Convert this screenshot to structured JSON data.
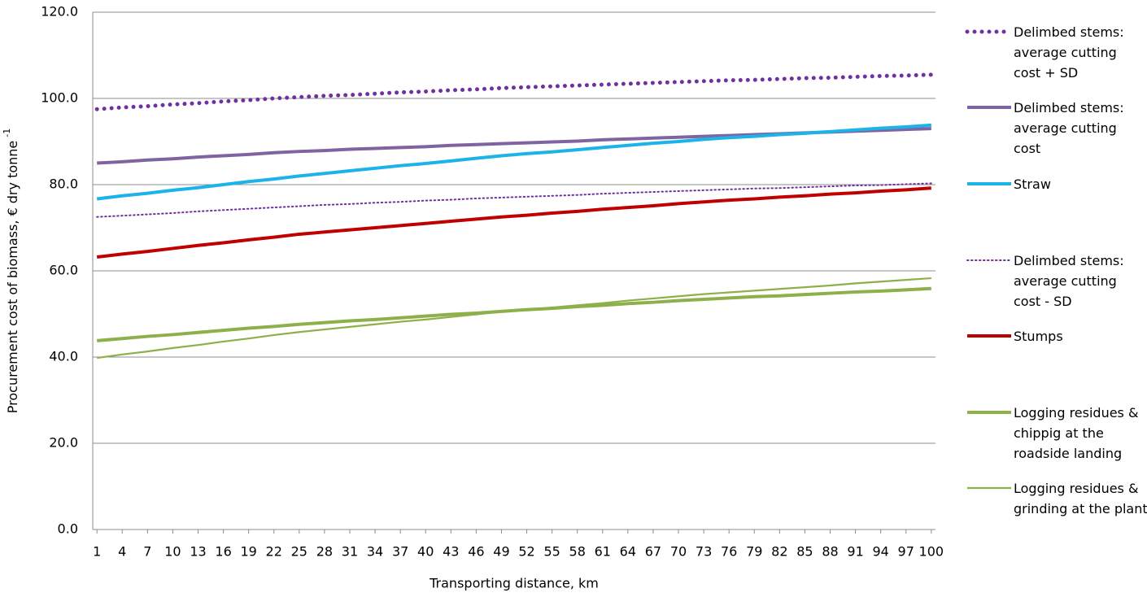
{
  "chart_data": {
    "type": "line",
    "xlabel": "Transporting distance, km",
    "ylabel": "Procurement cost of biomass, € dry tonne",
    "ylabel_superscript": "-1",
    "x": [
      1,
      4,
      7,
      10,
      13,
      16,
      19,
      22,
      25,
      28,
      31,
      34,
      37,
      40,
      43,
      46,
      49,
      52,
      55,
      58,
      61,
      64,
      67,
      70,
      73,
      76,
      79,
      82,
      85,
      88,
      91,
      94,
      97,
      100
    ],
    "xlim": [
      0.5,
      100.5
    ],
    "xticks": [
      1,
      4,
      7,
      10,
      13,
      16,
      19,
      22,
      25,
      28,
      31,
      34,
      37,
      40,
      43,
      46,
      49,
      52,
      55,
      58,
      61,
      64,
      67,
      70,
      73,
      76,
      79,
      82,
      85,
      88,
      91,
      94,
      97,
      100
    ],
    "ylim": [
      0,
      120
    ],
    "yticks": [
      {
        "value": 0,
        "label": "0.0"
      },
      {
        "value": 20,
        "label": "20.0"
      },
      {
        "value": 40,
        "label": "40.0"
      },
      {
        "value": 60,
        "label": "60.0"
      },
      {
        "value": 80,
        "label": "80.0"
      },
      {
        "value": 100,
        "label": "100.0"
      },
      {
        "value": 120,
        "label": "120.0"
      }
    ],
    "grid": true,
    "legend": "right",
    "series": [
      {
        "name": "Delimbed stems: average cutting cost + SD",
        "color": "#7030a0",
        "style": "dotted",
        "weight": "bold",
        "values": [
          97.5,
          97.9,
          98.2,
          98.6,
          98.9,
          99.3,
          99.6,
          100.0,
          100.3,
          100.6,
          100.8,
          101.1,
          101.4,
          101.6,
          101.9,
          102.1,
          102.4,
          102.6,
          102.8,
          103.0,
          103.2,
          103.4,
          103.6,
          103.8,
          104.0,
          104.2,
          104.3,
          104.5,
          104.7,
          104.8,
          105.0,
          105.2,
          105.3,
          105.5
        ]
      },
      {
        "name": "Delimbed stems: average cutting cost",
        "color": "#8064a2",
        "style": "solid",
        "weight": "bold",
        "values": [
          85.0,
          85.3,
          85.7,
          86.0,
          86.4,
          86.7,
          87.0,
          87.4,
          87.7,
          87.9,
          88.2,
          88.4,
          88.6,
          88.8,
          89.1,
          89.3,
          89.5,
          89.7,
          89.9,
          90.1,
          90.4,
          90.6,
          90.8,
          91.0,
          91.2,
          91.4,
          91.6,
          91.8,
          92.0,
          92.2,
          92.4,
          92.6,
          92.8,
          93.0
        ]
      },
      {
        "name": "Straw",
        "color": "#1cb4e8",
        "style": "solid",
        "weight": "bold",
        "values": [
          76.7,
          77.4,
          78.0,
          78.7,
          79.3,
          80.0,
          80.7,
          81.3,
          82.0,
          82.6,
          83.2,
          83.8,
          84.4,
          84.9,
          85.5,
          86.1,
          86.7,
          87.2,
          87.6,
          88.1,
          88.6,
          89.1,
          89.6,
          90.0,
          90.5,
          90.9,
          91.2,
          91.6,
          91.9,
          92.3,
          92.7,
          93.1,
          93.4,
          93.8
        ]
      },
      {
        "name": "Delimbed stems: average cutting cost - SD",
        "color": "#7030a0",
        "style": "dotted",
        "weight": "thin",
        "values": [
          72.5,
          72.8,
          73.1,
          73.4,
          73.8,
          74.1,
          74.4,
          74.7,
          75.0,
          75.3,
          75.5,
          75.8,
          76.0,
          76.3,
          76.5,
          76.8,
          77.0,
          77.2,
          77.4,
          77.6,
          77.9,
          78.1,
          78.3,
          78.5,
          78.7,
          78.9,
          79.1,
          79.2,
          79.4,
          79.6,
          79.8,
          79.9,
          80.1,
          80.3
        ]
      },
      {
        "name": "Stumps",
        "color": "#c00000",
        "style": "solid",
        "weight": "bold",
        "values": [
          63.2,
          63.9,
          64.5,
          65.2,
          65.9,
          66.5,
          67.2,
          67.8,
          68.5,
          69.0,
          69.5,
          70.0,
          70.5,
          71.0,
          71.5,
          72.0,
          72.5,
          72.9,
          73.4,
          73.8,
          74.3,
          74.7,
          75.1,
          75.6,
          76.0,
          76.4,
          76.7,
          77.1,
          77.4,
          77.8,
          78.1,
          78.5,
          78.8,
          79.2
        ]
      },
      {
        "name": "Logging residues & chippig at the roadside landing",
        "color": "#8db04a",
        "style": "solid",
        "weight": "bold",
        "values": [
          43.8,
          44.3,
          44.8,
          45.2,
          45.7,
          46.2,
          46.7,
          47.1,
          47.6,
          48.0,
          48.4,
          48.7,
          49.1,
          49.5,
          49.9,
          50.2,
          50.6,
          51.0,
          51.3,
          51.7,
          52.0,
          52.4,
          52.7,
          53.1,
          53.4,
          53.7,
          54.0,
          54.2,
          54.5,
          54.8,
          55.1,
          55.3,
          55.6,
          55.9
        ]
      },
      {
        "name": "Logging residues & grinding at the plant",
        "color": "#8db04a",
        "style": "solid",
        "weight": "thin",
        "values": [
          39.8,
          40.6,
          41.3,
          42.1,
          42.8,
          43.6,
          44.3,
          45.1,
          45.8,
          46.4,
          47.0,
          47.6,
          48.2,
          48.7,
          49.3,
          49.9,
          50.5,
          51.0,
          51.5,
          52.0,
          52.5,
          53.1,
          53.6,
          54.1,
          54.6,
          55.0,
          55.4,
          55.8,
          56.2,
          56.6,
          57.1,
          57.5,
          57.9,
          58.3
        ]
      }
    ]
  }
}
